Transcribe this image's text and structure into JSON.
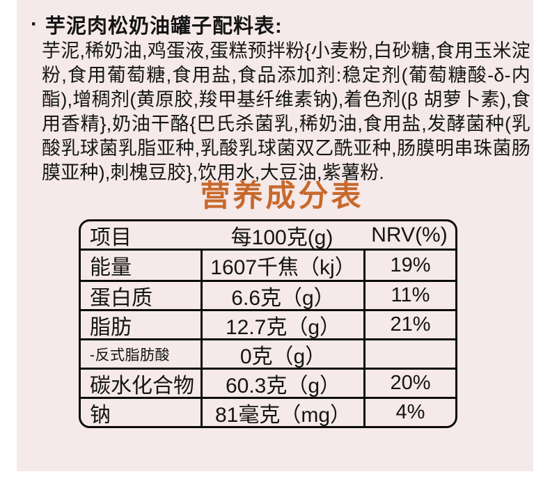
{
  "page": {
    "bg_color": "#f5e9e9",
    "accent_color": "#c7692c",
    "border_color": "#0b0b0b"
  },
  "ingredients_section": {
    "bullet": "·",
    "title": "芋泥肉松奶油罐子配料表:",
    "text": "芋泥,稀奶油,鸡蛋液,蛋糕预拌粉{小麦粉,白砂糖,食用玉米淀粉,食用葡萄糖,食用盐,食品添加剂:稳定剂(葡萄糖酸-δ-内酯),增稠剂(黄原胶,羧甲基纤维素钠),着色剂(β 胡萝卜素),食用香精},奶油干酪{巴氏杀菌乳,稀奶油,食用盐,发酵菌种(乳酸乳球菌乳脂亚种,乳酸乳球菌双乙酰亚种,肠膜明串珠菌肠膜亚种),刺槐豆胶},饮用水,大豆油,紫薯粉."
  },
  "nutrition_section": {
    "title": "营养成分表",
    "table": {
      "headers": [
        "项目",
        "每100克(g)",
        "NRV(%)"
      ],
      "rows": [
        {
          "item": "能量",
          "amount": "1607千焦（kj）",
          "nrv": "19%"
        },
        {
          "item": "蛋白质",
          "amount": "6.6克（g）",
          "nrv": "11%"
        },
        {
          "item": "脂肪",
          "amount": "12.7克（g）",
          "nrv": "21%"
        },
        {
          "item": "-反式脂肪酸",
          "amount": "0克（g）",
          "nrv": ""
        },
        {
          "item": "碳水化合物",
          "amount": "60.3克（g）",
          "nrv": "20%"
        },
        {
          "item": "钠",
          "amount": "81毫克（mg）",
          "nrv": "4%"
        }
      ]
    }
  }
}
